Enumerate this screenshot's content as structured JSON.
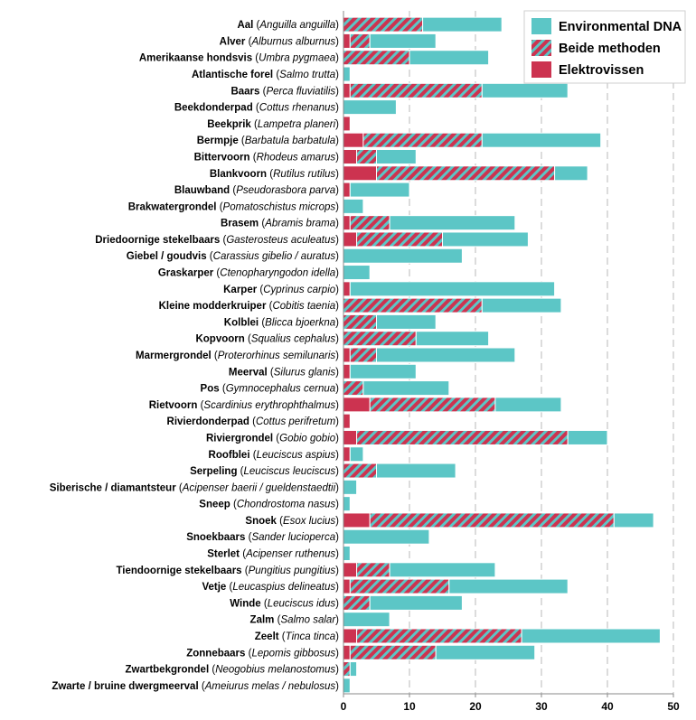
{
  "chart_data": {
    "type": "bar",
    "stacked": true,
    "orientation": "horizontal",
    "categories": [
      {
        "name": "Aal",
        "latin": "Anguilla anguilla"
      },
      {
        "name": "Alver",
        "latin": "Alburnus alburnus"
      },
      {
        "name": "Amerikaanse hondsvis",
        "latin": "Umbra pygmaea"
      },
      {
        "name": "Atlantische forel",
        "latin": "Salmo trutta"
      },
      {
        "name": "Baars",
        "latin": "Perca fluviatilis"
      },
      {
        "name": "Beekdonderpad",
        "latin": "Cottus rhenanus"
      },
      {
        "name": "Beekprik",
        "latin": "Lampetra planeri"
      },
      {
        "name": "Bermpje",
        "latin": "Barbatula barbatula"
      },
      {
        "name": "Bittervoorn",
        "latin": "Rhodeus amarus"
      },
      {
        "name": "Blankvoorn",
        "latin": "Rutilus rutilus"
      },
      {
        "name": "Blauwband",
        "latin": "Pseudorasbora parva"
      },
      {
        "name": "Brakwatergrondel",
        "latin": "Pomatoschistus microps"
      },
      {
        "name": "Brasem",
        "latin": "Abramis brama"
      },
      {
        "name": "Driedoornige stekelbaars",
        "latin": "Gasterosteus aculeatus"
      },
      {
        "name": "Giebel / goudvis",
        "latin": "Carassius gibelio / auratus"
      },
      {
        "name": "Graskarper",
        "latin": "Ctenopharyngodon idella"
      },
      {
        "name": "Karper",
        "latin": "Cyprinus carpio"
      },
      {
        "name": "Kleine modderkruiper",
        "latin": "Cobitis taenia"
      },
      {
        "name": "Kolblei",
        "latin": "Blicca bjoerkna"
      },
      {
        "name": "Kopvoorn",
        "latin": "Squalius cephalus"
      },
      {
        "name": "Marmergrondel",
        "latin": "Proterorhinus semilunaris"
      },
      {
        "name": "Meerval",
        "latin": "Silurus glanis"
      },
      {
        "name": "Pos",
        "latin": "Gymnocephalus cernua"
      },
      {
        "name": "Rietvoorn",
        "latin": "Scardinius erythrophthalmus"
      },
      {
        "name": "Rivierdonderpad",
        "latin": "Cottus perifretum"
      },
      {
        "name": "Riviergrondel",
        "latin": "Gobio gobio"
      },
      {
        "name": "Roofblei",
        "latin": "Leuciscus aspius"
      },
      {
        "name": "Serpeling",
        "latin": "Leuciscus leuciscus"
      },
      {
        "name": "Siberische / diamantsteur",
        "latin": "Acipenser baerii / gueldenstaedtii"
      },
      {
        "name": "Sneep",
        "latin": "Chondrostoma nasus"
      },
      {
        "name": "Snoek",
        "latin": "Esox lucius"
      },
      {
        "name": "Snoekbaars",
        "latin": "Sander lucioperca"
      },
      {
        "name": "Sterlet",
        "latin": "Acipenser ruthenus"
      },
      {
        "name": "Tiendoornige stekelbaars",
        "latin": "Pungitius pungitius"
      },
      {
        "name": "Vetje",
        "latin": "Leucaspius delineatus"
      },
      {
        "name": "Winde",
        "latin": "Leuciscus idus"
      },
      {
        "name": "Zalm",
        "latin": "Salmo salar"
      },
      {
        "name": "Zeelt",
        "latin": "Tinca tinca"
      },
      {
        "name": "Zonnebaars",
        "latin": "Lepomis gibbosus"
      },
      {
        "name": "Zwartbekgrondel",
        "latin": "Neogobius melanostomus"
      },
      {
        "name": "Zwarte / bruine dwergmeerval",
        "latin": "Ameiurus melas / nebulosus"
      }
    ],
    "series": [
      {
        "name": "Elektrovissen",
        "color": "#cc3350",
        "pattern": "solid",
        "values": [
          0,
          1,
          0,
          0,
          1,
          0,
          1,
          3,
          2,
          5,
          1,
          0,
          1,
          2,
          0,
          0,
          1,
          0,
          0,
          0,
          1,
          1,
          0,
          4,
          1,
          2,
          1,
          0,
          0,
          0,
          4,
          0,
          0,
          2,
          1,
          0,
          0,
          2,
          1,
          0,
          0
        ]
      },
      {
        "name": "Beide methoden",
        "color": "#cc3350",
        "pattern": "hatched",
        "stripe_color": "#5cc6c6",
        "values": [
          12,
          3,
          10,
          0,
          20,
          0,
          0,
          18,
          3,
          27,
          0,
          0,
          6,
          13,
          0,
          0,
          0,
          21,
          5,
          11,
          4,
          0,
          3,
          19,
          0,
          32,
          0,
          5,
          0,
          0,
          37,
          0,
          0,
          5,
          15,
          4,
          0,
          25,
          13,
          1,
          0
        ]
      },
      {
        "name": "Environmental DNA",
        "color": "#5cc6c6",
        "pattern": "solid",
        "values": [
          12,
          10,
          12,
          1,
          13,
          8,
          0,
          18,
          6,
          5,
          9,
          3,
          19,
          13,
          18,
          4,
          31,
          12,
          9,
          11,
          21,
          10,
          13,
          10,
          0,
          6,
          2,
          12,
          2,
          1,
          6,
          13,
          1,
          16,
          18,
          14,
          7,
          21,
          15,
          1,
          1
        ]
      }
    ],
    "xlim": [
      0,
      50
    ],
    "xticks": [
      0,
      10,
      20,
      30,
      40,
      50
    ],
    "grid": "vertical dashed",
    "legend_position": "top-right",
    "title": "",
    "xlabel": "",
    "ylabel": ""
  }
}
